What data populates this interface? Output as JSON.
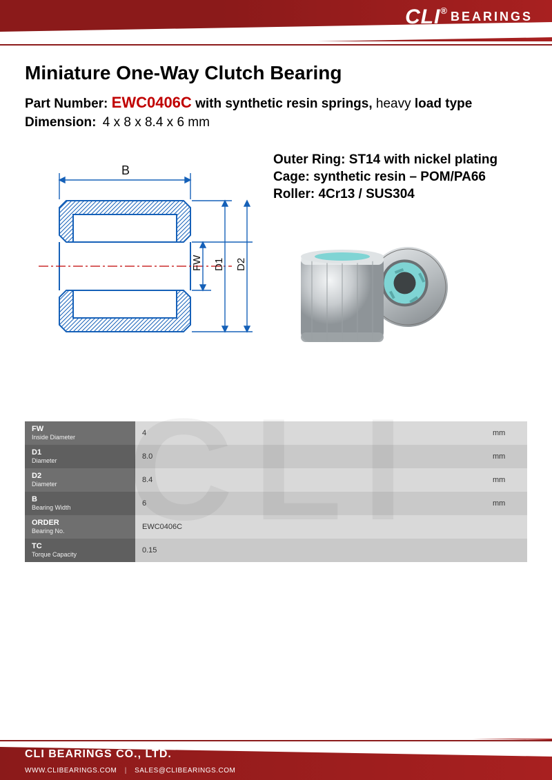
{
  "brand": {
    "name": "CLI",
    "reg": "®",
    "suffix": "BEARINGS"
  },
  "title": "Miniature One-Way Clutch Bearing",
  "partLine": {
    "label": "Part Number:",
    "partNo": "EWC0406C",
    "desc": "with synthetic resin springs,",
    "load": "heavy",
    "loadRest": "load type"
  },
  "dimLine": {
    "label": "Dimension:",
    "value": "4 x 8 x 8.4 x 6 mm"
  },
  "materials": {
    "outerRing": "Outer Ring: ST14 with nickel plating",
    "cage": "Cage: synthetic resin – POM/PA66",
    "roller": "Roller: 4Cr13 / SUS304"
  },
  "drawing": {
    "labels": {
      "B": "B",
      "FW": "FW",
      "D1": "D1",
      "D2": "D2"
    },
    "strokeColor": "#1560b8",
    "accentColor": "#c00000"
  },
  "photo": {
    "metalColor": "#c8cccf",
    "cageColor": "#7fd4d4"
  },
  "table": {
    "rows": [
      {
        "key": "FW",
        "sub": "Inside Diameter",
        "val": "4",
        "unit": "mm"
      },
      {
        "key": "D1",
        "sub": "Diameter",
        "val": "8.0",
        "unit": "mm"
      },
      {
        "key": "D2",
        "sub": "Diameter",
        "val": "8.4",
        "unit": "mm"
      },
      {
        "key": "B",
        "sub": "Bearing Width",
        "val": "6",
        "unit": "mm"
      },
      {
        "key": "ORDER",
        "sub": "Bearing No.",
        "val": "EWC0406C",
        "unit": ""
      },
      {
        "key": "TC",
        "sub": "Torque Capacity",
        "val": "0.15",
        "unit": ""
      }
    ],
    "colors": {
      "darkRow": "#6f6f6f",
      "lightRow": "#d9d9d9",
      "altRow": "#c9c9c9"
    }
  },
  "watermark": "CLI",
  "footer": {
    "company": "CLI BEARINGS CO., LTD.",
    "web": "WWW.CLIBEARINGS.COM",
    "email": "SALES@CLIBEARINGS.COM"
  }
}
